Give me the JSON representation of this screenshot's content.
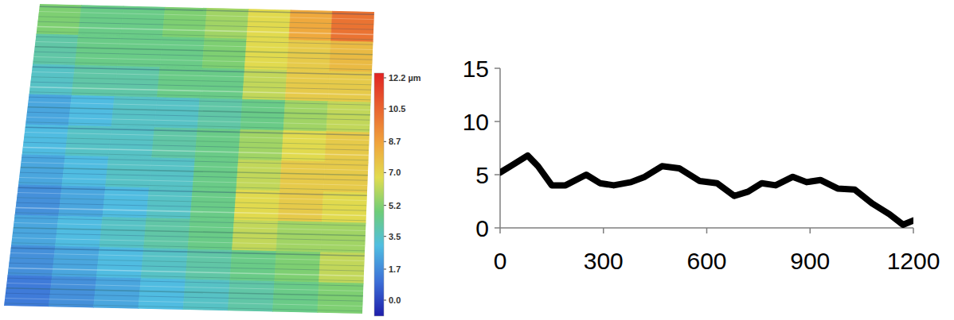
{
  "chart_data": [
    {
      "type": "heatmap",
      "cells": [
        [
          5.5,
          5,
          5,
          5.5,
          6,
          7,
          8.5,
          10
        ],
        [
          4.5,
          5,
          5,
          5,
          5.5,
          7,
          7.5,
          8
        ],
        [
          4,
          4.5,
          4.5,
          5,
          5,
          6.5,
          7.5,
          7.5
        ],
        [
          3,
          3.5,
          4,
          4,
          4.5,
          5,
          6,
          6.5
        ],
        [
          3.5,
          4,
          4,
          4.5,
          5,
          6,
          7,
          7.5
        ],
        [
          3,
          3.5,
          4,
          4,
          5,
          6.5,
          7.5,
          7.5
        ],
        [
          2.5,
          3,
          3.5,
          4,
          5,
          7,
          7.5,
          7
        ],
        [
          3,
          3.5,
          4,
          4.5,
          5,
          6.5,
          6,
          6
        ],
        [
          2.5,
          3,
          3.5,
          4,
          4.5,
          5,
          5.5,
          6.5
        ],
        [
          2,
          2.5,
          3,
          3.5,
          4,
          4.5,
          5,
          5.5
        ]
      ],
      "colorbar_range": [
        0,
        12.2
      ],
      "colorbar_ticks": [
        {
          "value": 12.2,
          "label": "12.2 µm"
        },
        10.5,
        8.7,
        {
          "value": 7,
          "label": "7.0"
        },
        5.2,
        3.5,
        1.7,
        {
          "value": 0,
          "label": "0.0"
        }
      ]
    },
    {
      "type": "line",
      "x": [
        0,
        30,
        80,
        110,
        150,
        190,
        250,
        290,
        330,
        380,
        420,
        470,
        520,
        580,
        630,
        680,
        720,
        760,
        800,
        850,
        890,
        930,
        980,
        1030,
        1080,
        1130,
        1170,
        1200
      ],
      "values": [
        5.2,
        5.8,
        6.8,
        5.8,
        4.0,
        4.0,
        5.0,
        4.2,
        4.0,
        4.3,
        4.8,
        5.8,
        5.6,
        4.4,
        4.2,
        3.0,
        3.4,
        4.2,
        4.0,
        4.8,
        4.3,
        4.5,
        3.7,
        3.6,
        2.3,
        1.3,
        0.3,
        0.7
      ],
      "color": "#000000",
      "xlim": [
        0,
        1200
      ],
      "ylim": [
        0,
        15
      ],
      "xticks": [
        0,
        300,
        600,
        900,
        1200
      ],
      "yticks": [
        0,
        5,
        10,
        15
      ]
    }
  ]
}
